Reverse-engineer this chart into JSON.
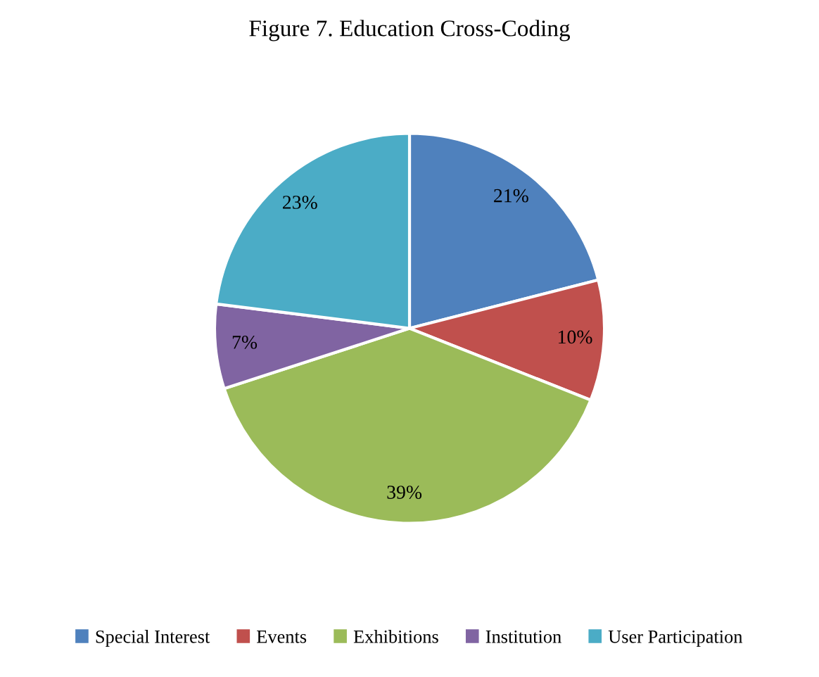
{
  "chart_data": {
    "type": "pie",
    "title": "Figure 7. Education Cross-Coding",
    "categories": [
      "Special Interest",
      "Events",
      "Exhibitions",
      "Institution",
      "User Participation"
    ],
    "values": [
      21,
      10,
      39,
      7,
      23
    ],
    "colors": [
      "#4f81bd",
      "#c0504d",
      "#9bbb59",
      "#8064a2",
      "#4bacc6"
    ],
    "value_labels": [
      "21%",
      "10%",
      "39%",
      "7%",
      "23%"
    ],
    "legend": "bottom"
  }
}
